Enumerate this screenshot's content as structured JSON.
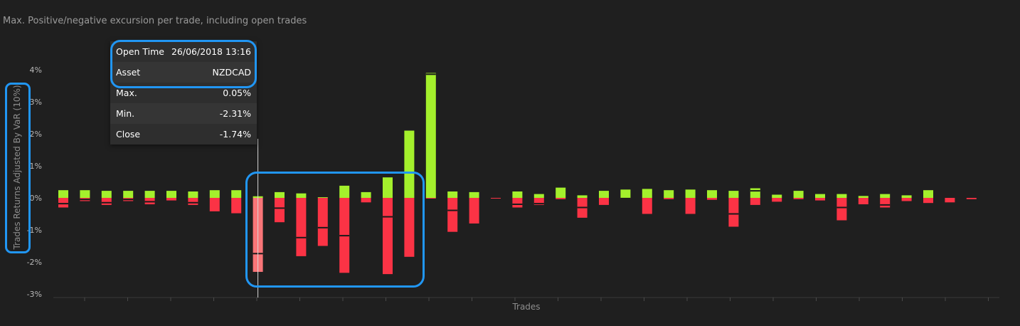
{
  "title": "Max. Positive/negative excursion per trade, including open trades",
  "colors": {
    "background": "#1f1f1f",
    "positive": "#a4f02c",
    "negative": "#fb3345",
    "negative_hover": "#f97578",
    "highlight": "#2196f3"
  },
  "tooltip": {
    "rows": [
      {
        "label": "Open Time",
        "value": "26/06/2018 13:16"
      },
      {
        "label": "Asset",
        "value": "NZDCAD"
      },
      {
        "label": "Max.",
        "value": "0.05%"
      },
      {
        "label": "Min.",
        "value": "-2.31%"
      },
      {
        "label": "Close",
        "value": "-1.74%"
      }
    ]
  },
  "chart_data": {
    "type": "bar",
    "title": "Max. Positive/negative excursion per trade, including open trades",
    "xlabel": "Trades",
    "ylabel": "Trades Returns Adjusted By VaR (10%)",
    "ylim": [
      -3,
      4
    ],
    "yticks": [
      "4%",
      "3%",
      "2%",
      "1%",
      "0%",
      "-1%",
      "-2%",
      "-3%"
    ],
    "hovered_index": 9,
    "series": [
      {
        "name": "Max.",
        "values": [
          0.24,
          0.24,
          0.22,
          0.22,
          0.22,
          0.22,
          0.2,
          0.24,
          0.24,
          0.05,
          0.18,
          0.14,
          0.02,
          0.38,
          0.18,
          0.64,
          2.1,
          3.9,
          0.2,
          0.18,
          0.0,
          0.2,
          0.12,
          0.32,
          0.08,
          0.22,
          0.26,
          0.28,
          0.24,
          0.26,
          0.24,
          0.22,
          0.3,
          0.1,
          0.22,
          0.12,
          0.12,
          0.06,
          0.12,
          0.08,
          0.24,
          0.0,
          0.0
        ]
      },
      {
        "name": "Min.",
        "values": [
          -0.3,
          -0.1,
          -0.22,
          -0.1,
          -0.2,
          -0.08,
          -0.22,
          -0.42,
          -0.48,
          -2.31,
          -0.76,
          -1.82,
          -1.5,
          -2.34,
          -0.14,
          -2.38,
          -1.84,
          -0.02,
          -1.06,
          -0.8,
          -0.02,
          -0.3,
          -0.22,
          -0.04,
          -0.62,
          -0.22,
          -0.04,
          -0.5,
          -0.04,
          -0.5,
          -0.06,
          -0.9,
          -0.22,
          -0.12,
          -0.04,
          -0.08,
          -0.7,
          -0.2,
          -0.3,
          -0.1,
          -0.16,
          -0.14,
          -0.04
        ]
      },
      {
        "name": "Close",
        "values": [
          -0.18,
          -0.05,
          -0.15,
          -0.05,
          -0.12,
          0.0,
          -0.15,
          0.0,
          0.0,
          -1.74,
          -0.32,
          -1.24,
          -0.93,
          -1.18,
          0.0,
          -0.59,
          0.0,
          3.86,
          -0.39,
          0.0,
          0.0,
          -0.2,
          -0.18,
          0.0,
          -0.3,
          0.0,
          -0.02,
          0.0,
          0.0,
          0.0,
          0.0,
          -0.5,
          0.22,
          0.0,
          0.0,
          0.0,
          -0.3,
          0.0,
          -0.22,
          0.0,
          0.0,
          0.0,
          0.0
        ]
      }
    ]
  }
}
